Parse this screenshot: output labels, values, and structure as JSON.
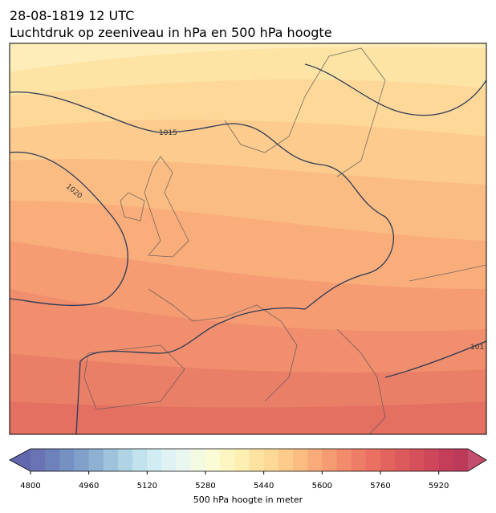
{
  "header": {
    "time": "28-08-1819 12 UTC",
    "title": "Luchtdruk op zeeniveau in hPa en 500 hPa hoogte"
  },
  "map": {
    "contour_labels": [
      "1015",
      "1020",
      "101"
    ]
  },
  "colorbar": {
    "label": "500 hPa hoogte in meter",
    "lim": [
      4800,
      6000
    ],
    "step": 40,
    "ticks": [
      4800,
      4960,
      5120,
      5280,
      5440,
      5600,
      5760,
      5920
    ],
    "extend_colors": [
      "#6267ae",
      "#c24d6c"
    ],
    "colors": [
      "#6a74b4",
      "#6d81ba",
      "#7690c2",
      "#80a0c9",
      "#8eb0d2",
      "#9fc3dd",
      "#b0d4e6",
      "#c2e2ee",
      "#d2ecf3",
      "#e1f2f4",
      "#ebf6ef",
      "#f4f9e2",
      "#fbfbd5",
      "#fef6c1",
      "#fdeeb2",
      "#fde3a2",
      "#fdd896",
      "#fccb8b",
      "#fbbc82",
      "#f9ac7a",
      "#f69b72",
      "#f28b6c",
      "#ee7d67",
      "#e97063",
      "#e3645f",
      "#dc5a5c",
      "#d5505b",
      "#cd465a",
      "#c43e5a",
      "#bd3b5a"
    ]
  }
}
